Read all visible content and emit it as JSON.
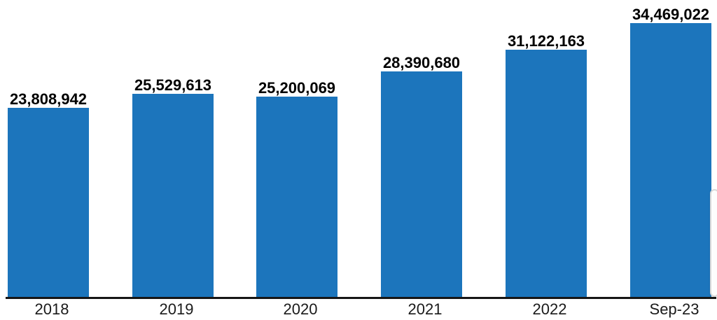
{
  "chart_data": {
    "type": "bar",
    "title": "",
    "xlabel": "",
    "ylabel": "",
    "categories": [
      "2018",
      "2019",
      "2020",
      "2021",
      "2022",
      "Sep-23"
    ],
    "values": [
      23808942,
      25529613,
      25200069,
      28390680,
      31122163,
      34469022
    ],
    "value_labels": [
      "23,808,942",
      "25,529,613",
      "25,200,069",
      "28,390,680",
      "31,122,163",
      "34,469,022"
    ],
    "ylim": [
      0,
      37400000
    ],
    "grid": false,
    "legend": "none",
    "y_axis_visible": false,
    "x_axis_line_visible": true,
    "bar_color": "#1C75BC",
    "value_label_color": "#000000",
    "tick_label_color": "#1A1A1A",
    "axis_line_color": "#161616",
    "background_color": "#FFFFFF"
  }
}
